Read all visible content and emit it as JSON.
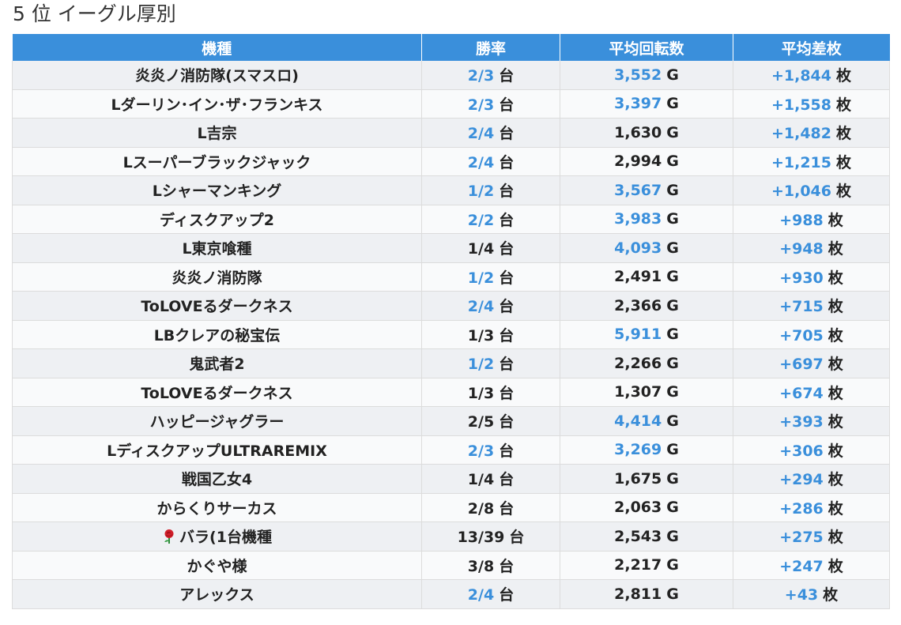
{
  "page": {
    "heading": "5 位 イーグル厚別"
  },
  "colors": {
    "header_bg": "#3a8fdb",
    "highlight": "#3a8fdb",
    "row_odd": "#eef0f3",
    "row_even": "#f9fafb"
  },
  "table": {
    "headers": [
      "機種",
      "勝率",
      "平均回転数",
      "平均差枚"
    ],
    "rows": [
      {
        "name": "炎炎ノ消防隊(スマスロ)",
        "win": "2/3",
        "win_unit": "台",
        "win_hl": true,
        "spins": "3,552",
        "spins_unit": "G",
        "spins_hl": true,
        "diff": "+1,844",
        "diff_unit": "枚",
        "diff_hl": true
      },
      {
        "name": "Lダーリン･イン･ザ･フランキス",
        "win": "2/3",
        "win_unit": "台",
        "win_hl": true,
        "spins": "3,397",
        "spins_unit": "G",
        "spins_hl": true,
        "diff": "+1,558",
        "diff_unit": "枚",
        "diff_hl": true
      },
      {
        "name": "L吉宗",
        "win": "2/4",
        "win_unit": "台",
        "win_hl": true,
        "spins": "1,630",
        "spins_unit": "G",
        "spins_hl": false,
        "diff": "+1,482",
        "diff_unit": "枚",
        "diff_hl": true
      },
      {
        "name": "Lスーパーブラックジャック",
        "win": "2/4",
        "win_unit": "台",
        "win_hl": true,
        "spins": "2,994",
        "spins_unit": "G",
        "spins_hl": false,
        "diff": "+1,215",
        "diff_unit": "枚",
        "diff_hl": true
      },
      {
        "name": "Lシャーマンキング",
        "win": "1/2",
        "win_unit": "台",
        "win_hl": true,
        "spins": "3,567",
        "spins_unit": "G",
        "spins_hl": true,
        "diff": "+1,046",
        "diff_unit": "枚",
        "diff_hl": true
      },
      {
        "name": "ディスクアップ2",
        "win": "2/2",
        "win_unit": "台",
        "win_hl": true,
        "spins": "3,983",
        "spins_unit": "G",
        "spins_hl": true,
        "diff": "+988",
        "diff_unit": "枚",
        "diff_hl": true
      },
      {
        "name": "L東京喰種",
        "win": "1/4",
        "win_unit": "台",
        "win_hl": false,
        "spins": "4,093",
        "spins_unit": "G",
        "spins_hl": true,
        "diff": "+948",
        "diff_unit": "枚",
        "diff_hl": true
      },
      {
        "name": "炎炎ノ消防隊",
        "win": "1/2",
        "win_unit": "台",
        "win_hl": true,
        "spins": "2,491",
        "spins_unit": "G",
        "spins_hl": false,
        "diff": "+930",
        "diff_unit": "枚",
        "diff_hl": true
      },
      {
        "name": "ToLOVEるダークネス",
        "win": "2/4",
        "win_unit": "台",
        "win_hl": true,
        "spins": "2,366",
        "spins_unit": "G",
        "spins_hl": false,
        "diff": "+715",
        "diff_unit": "枚",
        "diff_hl": true
      },
      {
        "name": "LBクレアの秘宝伝",
        "win": "1/3",
        "win_unit": "台",
        "win_hl": false,
        "spins": "5,911",
        "spins_unit": "G",
        "spins_hl": true,
        "diff": "+705",
        "diff_unit": "枚",
        "diff_hl": true
      },
      {
        "name": "鬼武者2",
        "win": "1/2",
        "win_unit": "台",
        "win_hl": true,
        "spins": "2,266",
        "spins_unit": "G",
        "spins_hl": false,
        "diff": "+697",
        "diff_unit": "枚",
        "diff_hl": true
      },
      {
        "name": "ToLOVEるダークネス",
        "win": "1/3",
        "win_unit": "台",
        "win_hl": false,
        "spins": "1,307",
        "spins_unit": "G",
        "spins_hl": false,
        "diff": "+674",
        "diff_unit": "枚",
        "diff_hl": true
      },
      {
        "name": "ハッピージャグラー",
        "win": "2/5",
        "win_unit": "台",
        "win_hl": false,
        "spins": "4,414",
        "spins_unit": "G",
        "spins_hl": true,
        "diff": "+393",
        "diff_unit": "枚",
        "diff_hl": true
      },
      {
        "name": "LディスクアップULTRAREMIX",
        "win": "2/3",
        "win_unit": "台",
        "win_hl": true,
        "spins": "3,269",
        "spins_unit": "G",
        "spins_hl": true,
        "diff": "+306",
        "diff_unit": "枚",
        "diff_hl": true
      },
      {
        "name": "戦国乙女4",
        "win": "1/4",
        "win_unit": "台",
        "win_hl": false,
        "spins": "1,675",
        "spins_unit": "G",
        "spins_hl": false,
        "diff": "+294",
        "diff_unit": "枚",
        "diff_hl": true
      },
      {
        "name": "からくりサーカス",
        "win": "2/8",
        "win_unit": "台",
        "win_hl": false,
        "spins": "2,063",
        "spins_unit": "G",
        "spins_hl": false,
        "diff": "+286",
        "diff_unit": "枚",
        "diff_hl": true
      },
      {
        "name": "バラ(1台機種",
        "icon": "rose-icon",
        "win": "13/39",
        "win_unit": "台",
        "win_hl": false,
        "spins": "2,543",
        "spins_unit": "G",
        "spins_hl": false,
        "diff": "+275",
        "diff_unit": "枚",
        "diff_hl": true
      },
      {
        "name": "かぐや様",
        "win": "3/8",
        "win_unit": "台",
        "win_hl": false,
        "spins": "2,217",
        "spins_unit": "G",
        "spins_hl": false,
        "diff": "+247",
        "diff_unit": "枚",
        "diff_hl": true
      },
      {
        "name": "アレックス",
        "win": "2/4",
        "win_unit": "台",
        "win_hl": true,
        "spins": "2,811",
        "spins_unit": "G",
        "spins_hl": false,
        "diff": "+43",
        "diff_unit": "枚",
        "diff_hl": true
      }
    ]
  }
}
